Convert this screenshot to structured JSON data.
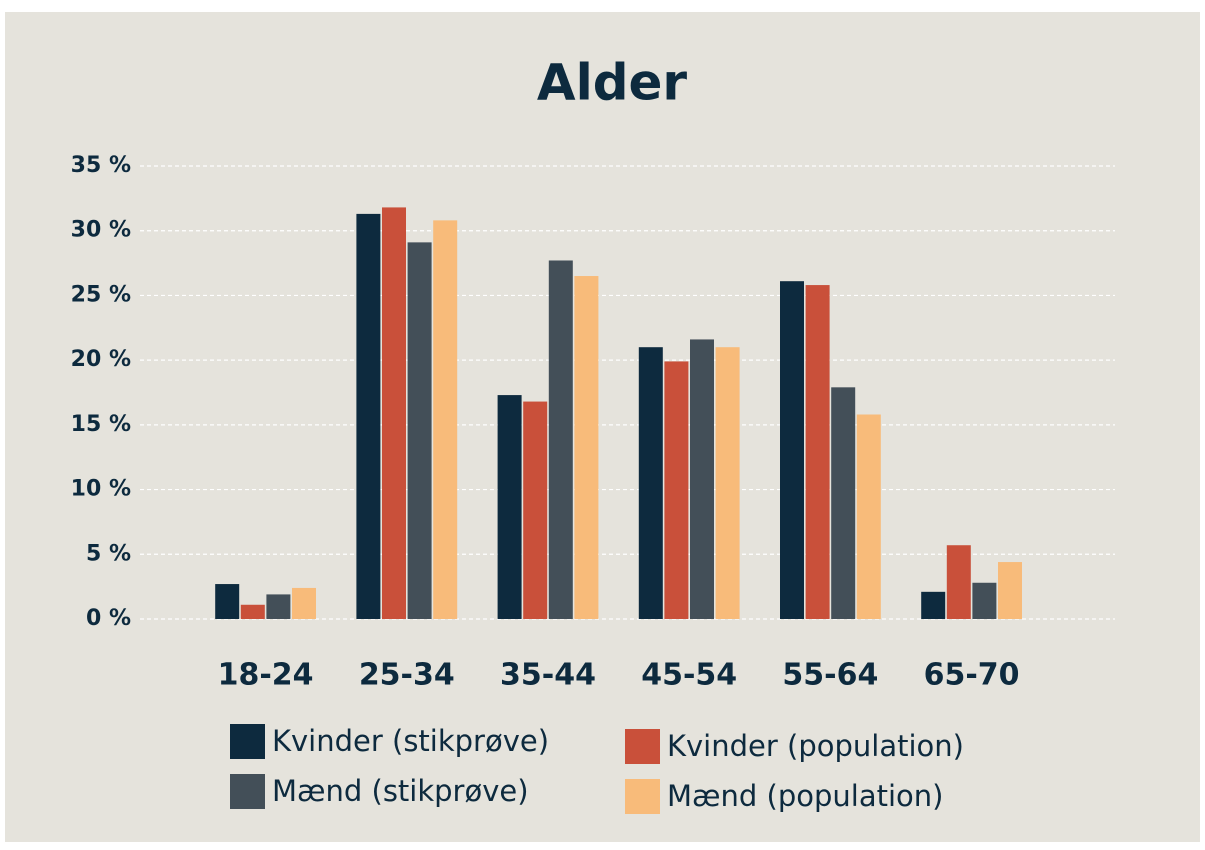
{
  "chart_data": {
    "type": "bar",
    "title": "Alder",
    "categories": [
      "18-24",
      "25-34",
      "35-44",
      "45-54",
      "55-64",
      "65-70"
    ],
    "series": [
      {
        "name": "Kvinder (stikprøve)",
        "color": "#0d2a3e",
        "values": [
          2.7,
          31.3,
          17.3,
          21.0,
          26.1,
          2.1
        ]
      },
      {
        "name": "Kvinder (population)",
        "color": "#c9503a",
        "values": [
          1.1,
          31.8,
          16.8,
          19.9,
          25.8,
          5.7
        ]
      },
      {
        "name": "Mænd (stikprøve)",
        "color": "#434f58",
        "values": [
          1.9,
          29.1,
          27.7,
          21.6,
          17.9,
          2.8
        ]
      },
      {
        "name": "Mænd (population)",
        "color": "#f8bb7a",
        "values": [
          2.4,
          30.8,
          26.5,
          21.0,
          15.8,
          4.4
        ]
      }
    ],
    "ylim": [
      0,
      35
    ],
    "yticks": [
      {
        "value": 0,
        "label": "0 %"
      },
      {
        "value": 5,
        "label": "5 %"
      },
      {
        "value": 10,
        "label": "10 %"
      },
      {
        "value": 15,
        "label": "15 %"
      },
      {
        "value": 20,
        "label": "20 %"
      },
      {
        "value": 25,
        "label": "25 %"
      },
      {
        "value": 30,
        "label": "30 %"
      },
      {
        "value": 35,
        "label": "35 %"
      }
    ],
    "grid": true
  }
}
